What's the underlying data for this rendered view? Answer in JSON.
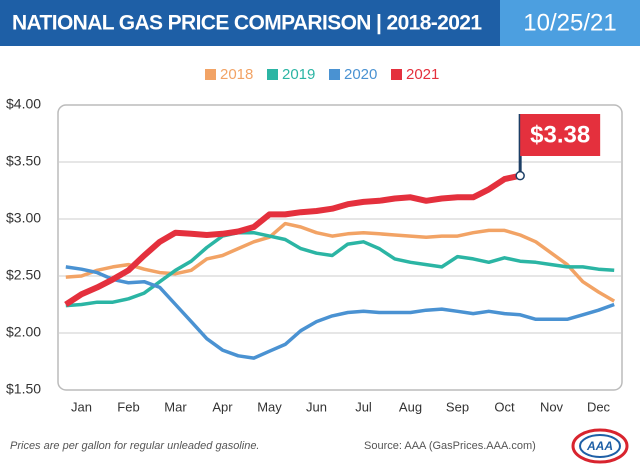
{
  "header": {
    "title": "NATIONAL GAS PRICE COMPARISON | 2018-2021",
    "date": "10/25/21"
  },
  "chart_data": {
    "type": "line",
    "categories": [
      null,
      "Jan",
      null,
      null,
      "Feb",
      null,
      null,
      "Mar",
      null,
      null,
      "Apr",
      null,
      null,
      "May",
      null,
      null,
      "Jun",
      null,
      null,
      "Jul",
      null,
      null,
      "Aug",
      null,
      null,
      "Sep",
      null,
      null,
      "Oct",
      null,
      null,
      "Nov",
      null,
      null,
      "Dec",
      null
    ],
    "series": [
      {
        "name": "2018",
        "color": "#f2a365",
        "values": [
          2.49,
          2.5,
          2.55,
          2.58,
          2.6,
          2.56,
          2.53,
          2.52,
          2.55,
          2.65,
          2.68,
          2.74,
          2.8,
          2.84,
          2.96,
          2.93,
          2.88,
          2.85,
          2.87,
          2.88,
          2.87,
          2.86,
          2.85,
          2.84,
          2.85,
          2.85,
          2.88,
          2.9,
          2.9,
          2.86,
          2.8,
          2.7,
          2.6,
          2.45,
          2.36,
          2.28
        ]
      },
      {
        "name": "2019",
        "color": "#2bb5a4",
        "values": [
          2.24,
          2.25,
          2.27,
          2.27,
          2.3,
          2.35,
          2.45,
          2.55,
          2.63,
          2.75,
          2.85,
          2.88,
          2.88,
          2.85,
          2.82,
          2.74,
          2.7,
          2.68,
          2.78,
          2.8,
          2.74,
          2.65,
          2.62,
          2.6,
          2.58,
          2.67,
          2.65,
          2.62,
          2.66,
          2.63,
          2.62,
          2.6,
          2.58,
          2.58,
          2.56,
          2.55
        ]
      },
      {
        "name": "2020",
        "color": "#4a92d2",
        "values": [
          2.58,
          2.56,
          2.53,
          2.47,
          2.44,
          2.45,
          2.4,
          2.25,
          2.1,
          1.95,
          1.85,
          1.8,
          1.78,
          1.84,
          1.9,
          2.02,
          2.1,
          2.15,
          2.18,
          2.19,
          2.18,
          2.18,
          2.18,
          2.2,
          2.21,
          2.19,
          2.17,
          2.19,
          2.17,
          2.16,
          2.12,
          2.12,
          2.12,
          2.16,
          2.2,
          2.25
        ]
      },
      {
        "name": "2021",
        "color": "#e4303d",
        "values": [
          2.25,
          2.34,
          2.4,
          2.47,
          2.55,
          2.68,
          2.8,
          2.88,
          2.87,
          2.86,
          2.87,
          2.89,
          2.93,
          3.04,
          3.04,
          3.06,
          3.07,
          3.09,
          3.13,
          3.15,
          3.16,
          3.18,
          3.19,
          3.16,
          3.18,
          3.19,
          3.19,
          3.26,
          3.35,
          3.38,
          null,
          null,
          null,
          null,
          null,
          null
        ]
      }
    ],
    "annotation": "$3.38",
    "ylim": [
      1.5,
      4.0
    ],
    "yticks": [
      {
        "value": 1.5,
        "label": "$1.50"
      },
      {
        "value": 2.0,
        "label": "$2.00"
      },
      {
        "value": 2.5,
        "label": "$2.50"
      },
      {
        "value": 3.0,
        "label": "$3.00"
      },
      {
        "value": 3.5,
        "label": "$3.50"
      },
      {
        "value": 4.0,
        "label": "$4.00"
      }
    ],
    "grid": true
  },
  "footer": {
    "note": "Prices are per gallon for regular unleaded gasoline.",
    "source": "Source: AAA (GasPrices.AAA.com)",
    "logo": "AAA"
  }
}
